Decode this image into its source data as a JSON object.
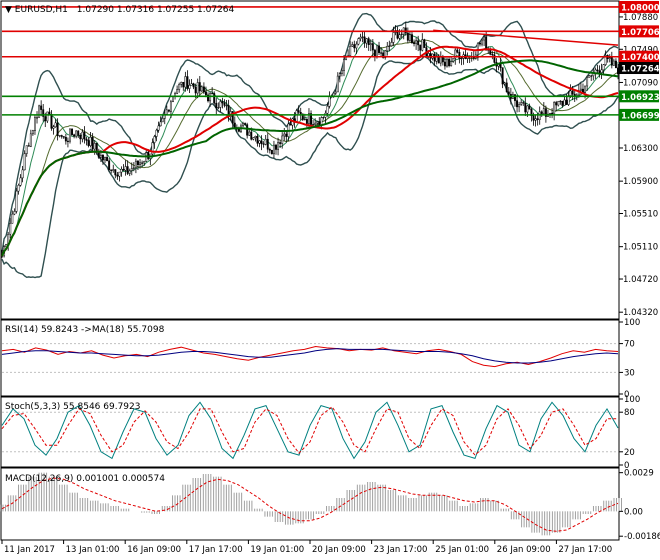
{
  "header": {
    "symbol_label": "EURUSD,H1",
    "ohlc": "1.07290 1.07316 1.07255 1.07264"
  },
  "chart_data": [
    {
      "type": "candlestick",
      "ylim": [
        1.0425,
        1.0806
      ],
      "y_ticks": [
        "1.07880",
        "1.07490",
        "1.07090",
        "1.06300",
        "1.05900",
        "1.05510",
        "1.05110",
        "1.04720",
        "1.04320"
      ],
      "y_tick_values": [
        1.0788,
        1.0749,
        1.0709,
        1.063,
        1.059,
        1.0551,
        1.0511,
        1.0472,
        1.0432
      ],
      "x_ticks": [
        "11 Jan 2017",
        "13 Jan 01:00",
        "16 Jan 09:00",
        "17 Jan 17:00",
        "19 Jan 01:00",
        "20 Jan 09:00",
        "23 Jan 17:00",
        "25 Jan 01:00",
        "26 Jan 09:00",
        "27 Jan 17:00"
      ],
      "x_tick_pos": [
        0.0,
        0.1,
        0.2,
        0.3,
        0.4,
        0.5,
        0.6,
        0.7,
        0.8,
        0.9
      ],
      "horizontal_levels": [
        {
          "label": "1.08000",
          "value": 1.08,
          "color": "#e00000"
        },
        {
          "label": "1.07706",
          "value": 1.07706,
          "color": "#e00000"
        },
        {
          "label": "1.07400",
          "value": 1.074,
          "color": "#e00000"
        },
        {
          "label": "1.06923",
          "value": 1.06923,
          "color": "#008000"
        },
        {
          "label": "1.06699",
          "value": 1.06699,
          "color": "#008000"
        }
      ],
      "current_price": {
        "label": "1.07264",
        "value": 1.07264
      },
      "trendline": {
        "from": [
          0.7,
          1.0772
        ],
        "to": [
          1.0,
          1.0754
        ],
        "color": "#e00000"
      },
      "close_path": [
        [
          0.0,
          1.05
        ],
        [
          0.02,
          1.056
        ],
        [
          0.04,
          1.063
        ],
        [
          0.06,
          1.068
        ],
        [
          0.08,
          1.066
        ],
        [
          0.1,
          1.064
        ],
        [
          0.12,
          1.065
        ],
        [
          0.14,
          1.064
        ],
        [
          0.16,
          1.062
        ],
        [
          0.18,
          1.0605
        ],
        [
          0.2,
          1.06
        ],
        [
          0.22,
          1.061
        ],
        [
          0.24,
          1.0625
        ],
        [
          0.26,
          1.066
        ],
        [
          0.28,
          1.07
        ],
        [
          0.3,
          1.071
        ],
        [
          0.32,
          1.07
        ],
        [
          0.34,
          1.069
        ],
        [
          0.36,
          1.068
        ],
        [
          0.38,
          1.066
        ],
        [
          0.4,
          1.065
        ],
        [
          0.42,
          1.064
        ],
        [
          0.44,
          1.063
        ],
        [
          0.46,
          1.065
        ],
        [
          0.48,
          1.067
        ],
        [
          0.5,
          1.0665
        ],
        [
          0.52,
          1.0665
        ],
        [
          0.54,
          1.07
        ],
        [
          0.56,
          1.074
        ],
        [
          0.58,
          1.076
        ],
        [
          0.6,
          1.075
        ],
        [
          0.62,
          1.074
        ],
        [
          0.64,
          1.077
        ],
        [
          0.66,
          1.0765
        ],
        [
          0.68,
          1.0755
        ],
        [
          0.7,
          1.074
        ],
        [
          0.72,
          1.073
        ],
        [
          0.74,
          1.0745
        ],
        [
          0.76,
          1.074
        ],
        [
          0.78,
          1.076
        ],
        [
          0.8,
          1.074
        ],
        [
          0.82,
          1.07
        ],
        [
          0.84,
          1.068
        ],
        [
          0.86,
          1.067
        ],
        [
          0.88,
          1.067
        ],
        [
          0.9,
          1.068
        ],
        [
          0.92,
          1.069
        ],
        [
          0.94,
          1.07
        ],
        [
          0.96,
          1.072
        ],
        [
          0.98,
          1.0735
        ],
        [
          1.0,
          1.0726
        ]
      ]
    },
    {
      "type": "line",
      "title": "RSI(14) 59.8243  ->MA(18) 55.7098",
      "ylim": [
        0,
        100
      ],
      "y_ticks": [
        "100",
        "70",
        "30",
        "0"
      ],
      "y_tick_values": [
        100,
        70,
        30,
        0
      ],
      "series": [
        {
          "color": "#e00000",
          "values": [
            60,
            62,
            58,
            64,
            61,
            55,
            59,
            57,
            60,
            54,
            50,
            53,
            55,
            52,
            58,
            62,
            65,
            61,
            57,
            55,
            52,
            49,
            47,
            51,
            54,
            57,
            60,
            62,
            66,
            64,
            63,
            60,
            62,
            61,
            64,
            60,
            58,
            56,
            60,
            62,
            59,
            55,
            45,
            40,
            38,
            42,
            44,
            41,
            45,
            50,
            56,
            60,
            58,
            62,
            60,
            59
          ]
        },
        {
          "color": "#000080",
          "values": [
            55,
            57,
            59,
            60,
            60,
            59,
            58,
            57,
            57,
            56,
            55,
            54,
            53,
            53,
            54,
            56,
            58,
            59,
            59,
            58,
            56,
            54,
            52,
            51,
            51,
            53,
            55,
            57,
            60,
            62,
            63,
            62,
            62,
            62,
            62,
            61,
            60,
            59,
            59,
            59,
            58,
            56,
            53,
            49,
            46,
            44,
            43,
            43,
            44,
            46,
            49,
            52,
            54,
            56,
            57,
            56
          ]
        }
      ]
    },
    {
      "type": "line",
      "title": "Stoch(5,3,3) 55.8546 69.7923",
      "ylim": [
        0,
        100
      ],
      "y_ticks": [
        "100",
        "80",
        "20",
        "0"
      ],
      "y_tick_values": [
        100,
        80,
        20,
        0
      ],
      "series": [
        {
          "color": "#008080",
          "values": [
            60,
            85,
            70,
            30,
            15,
            40,
            80,
            90,
            60,
            20,
            10,
            50,
            85,
            80,
            40,
            15,
            30,
            75,
            95,
            70,
            25,
            10,
            45,
            85,
            90,
            55,
            20,
            15,
            60,
            90,
            85,
            40,
            10,
            35,
            80,
            95,
            60,
            20,
            30,
            85,
            90,
            50,
            15,
            10,
            55,
            90,
            80,
            30,
            20,
            70,
            95,
            75,
            40,
            20,
            60,
            85,
            56
          ]
        },
        {
          "color": "#e00000",
          "values": [
            55,
            75,
            78,
            55,
            30,
            30,
            60,
            85,
            78,
            45,
            20,
            30,
            65,
            82,
            65,
            35,
            25,
            50,
            85,
            85,
            50,
            20,
            25,
            65,
            85,
            75,
            40,
            18,
            35,
            75,
            88,
            65,
            30,
            20,
            55,
            85,
            80,
            40,
            25,
            60,
            85,
            75,
            35,
            15,
            30,
            70,
            85,
            60,
            25,
            45,
            80,
            85,
            60,
            30,
            40,
            70,
            70
          ]
        }
      ]
    },
    {
      "type": "bar",
      "title": "MACD(12,26,9) 0.001001 0.000574",
      "ylim": [
        -0.002,
        0.0031
      ],
      "y_ticks": [
        "0.0029",
        "0.00",
        "-0.001865"
      ],
      "y_tick_values": [
        0.0029,
        0.0,
        -0.001865
      ],
      "values": [
        0.0005,
        0.0012,
        0.002,
        0.0026,
        0.0029,
        0.0026,
        0.002,
        0.0014,
        0.001,
        0.0008,
        0.0006,
        0.0004,
        0.0002,
        0.0,
        -0.0001,
        -0.0002,
        0.0004,
        0.0012,
        0.002,
        0.0025,
        0.0028,
        0.0026,
        0.002,
        0.0014,
        0.0008,
        0.0002,
        -0.0004,
        -0.0008,
        -0.001,
        -0.0009,
        -0.0006,
        -0.0002,
        0.0004,
        0.001,
        0.0016,
        0.002,
        0.0022,
        0.002,
        0.0016,
        0.0012,
        0.001,
        0.0012,
        0.0014,
        0.0012,
        0.0008,
        0.0004,
        0.0006,
        0.001,
        0.0008,
        0.0002,
        -0.0006,
        -0.0012,
        -0.0016,
        -0.0018,
        -0.0016,
        -0.0012,
        -0.0006,
        -0.0002,
        0.0004,
        0.0008,
        0.001
      ],
      "signal": [
        0.0002,
        0.0006,
        0.0012,
        0.0018,
        0.0023,
        0.0025,
        0.0024,
        0.0021,
        0.0017,
        0.0014,
        0.0011,
        0.0008,
        0.0006,
        0.0004,
        0.0002,
        0.0,
        0.0001,
        0.0005,
        0.0011,
        0.0017,
        0.0022,
        0.0024,
        0.0023,
        0.002,
        0.0015,
        0.001,
        0.0004,
        -0.0001,
        -0.0005,
        -0.0007,
        -0.0007,
        -0.0005,
        -0.0001,
        0.0004,
        0.0009,
        0.0014,
        0.0017,
        0.0018,
        0.0017,
        0.0015,
        0.0013,
        0.0012,
        0.0012,
        0.0012,
        0.001,
        0.0008,
        0.0007,
        0.0008,
        0.0008,
        0.0005,
        0.0,
        -0.0005,
        -0.001,
        -0.0014,
        -0.0015,
        -0.0014,
        -0.001,
        -0.0006,
        -0.0001,
        0.0003,
        0.0006
      ]
    }
  ]
}
